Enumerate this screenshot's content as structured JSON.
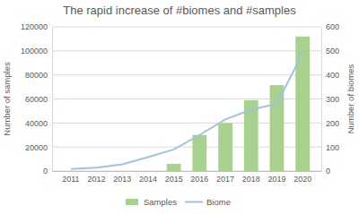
{
  "chart_data": {
    "type": "bar",
    "title": "The rapid increase of #biomes and #samples",
    "y_label": "Number of samples",
    "y2_label": "Number of biomes",
    "categories": [
      "2011",
      "2012",
      "2013",
      "2014",
      "2015",
      "2016",
      "2017",
      "2018",
      "2019",
      "2020"
    ],
    "series": [
      {
        "name": "Samples",
        "type": "bar",
        "color": "#a9d18e",
        "values": [
          0,
          0,
          0,
          0,
          6000,
          30000,
          40000,
          59000,
          71500,
          112000
        ]
      },
      {
        "name": "Biome",
        "type": "line",
        "color": "#9dc3e6",
        "axis": "y2",
        "values": [
          8,
          14,
          28,
          58,
          90,
          150,
          215,
          255,
          280,
          490
        ]
      }
    ],
    "ylim": [
      0,
      120000
    ],
    "yticks": [
      0,
      20000,
      40000,
      60000,
      80000,
      100000,
      120000
    ],
    "y2lim": [
      0,
      600
    ],
    "y2ticks": [
      0,
      100,
      200,
      300,
      400,
      500,
      600
    ],
    "grid": true,
    "legend": "bottom"
  }
}
